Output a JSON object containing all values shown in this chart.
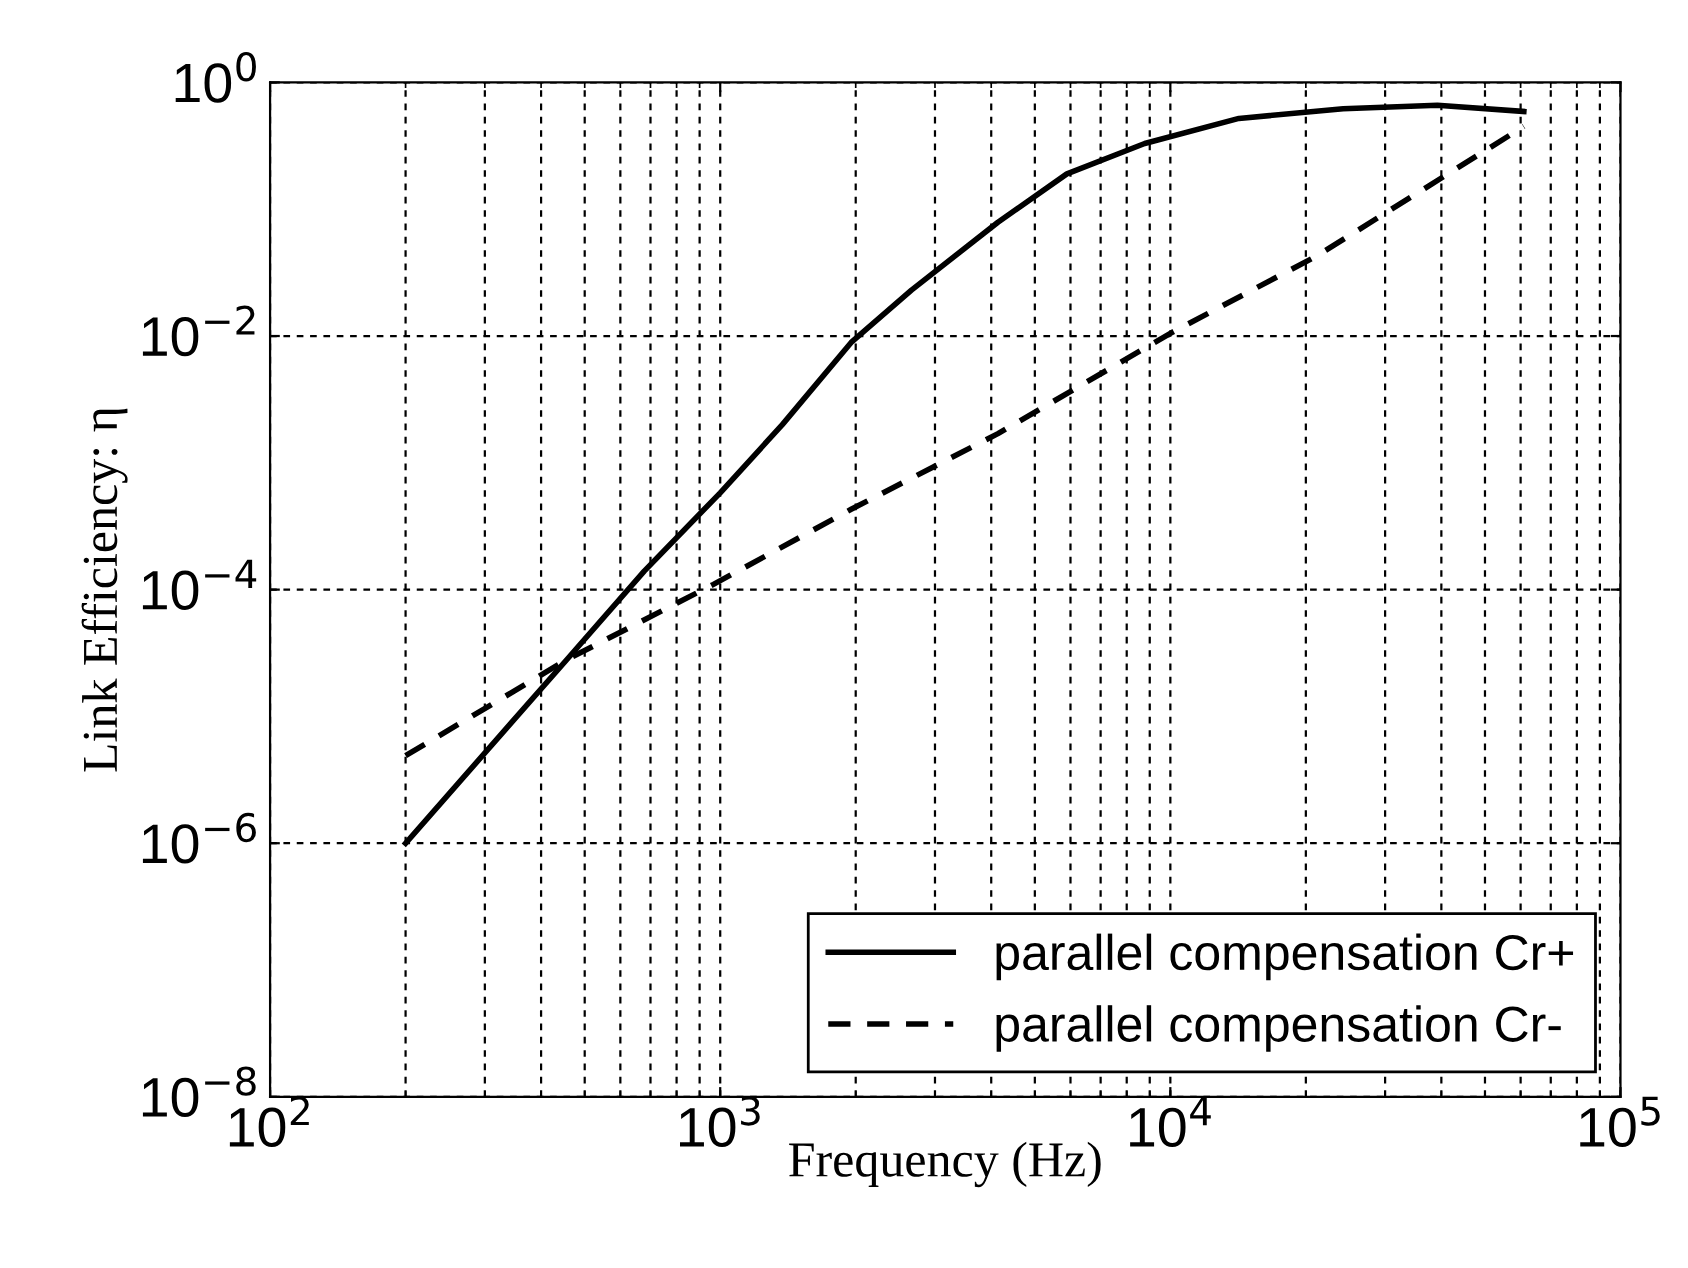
{
  "chart_data": {
    "type": "line",
    "xlabel": "Frequency (Hz)",
    "ylabel": "Link Efficiency: η",
    "log": "xy",
    "xlim": [
      100,
      100000
    ],
    "ylim": [
      1e-08,
      1
    ],
    "xticks": [
      {
        "value": 100,
        "label": "10$^{2}$"
      },
      {
        "value": 1000,
        "label": "10$^{3}$"
      },
      {
        "value": 10000,
        "label": "10$^{4}$"
      },
      {
        "value": 100000,
        "label": "10$^{5}$"
      }
    ],
    "yticks": [
      {
        "value": 1e-08,
        "label": "10$^{−8}$"
      },
      {
        "value": 1e-06,
        "label": "10$^{−6}$"
      },
      {
        "value": 0.0001,
        "label": "10$^{−4}$"
      },
      {
        "value": 0.01,
        "label": "10$^{−2}$"
      },
      {
        "value": 1,
        "label": "10$^{0}$"
      }
    ],
    "grid": true,
    "legend": "bottom right",
    "series": [
      {
        "name": "parallel compensation Cr+",
        "color": "#000000",
        "line_style": "solid",
        "x": [
          200,
          456,
          678,
          1000,
          1374,
          1954,
          2660,
          4140,
          5890,
          8770,
          14200,
          24200,
          39200,
          61000
        ],
        "values": [
          1e-06,
          2.8e-05,
          0.00014,
          0.00058,
          0.002,
          0.0089,
          0.023,
          0.079,
          0.19,
          0.33,
          0.52,
          0.62,
          0.66,
          0.59
        ]
      },
      {
        "name": "parallel compensation Cr-",
        "color": "#000000",
        "line_style": "dashed",
        "x": [
          200,
          456,
          966,
          1954,
          4140,
          10000,
          21200,
          61000
        ],
        "values": [
          4.9e-06,
          2.8e-05,
          0.00011,
          0.00043,
          0.0017,
          0.0105,
          0.043,
          0.45
        ]
      }
    ]
  }
}
